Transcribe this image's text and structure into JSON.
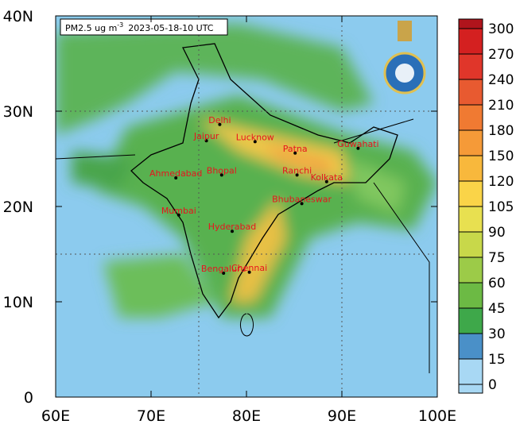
{
  "title": {
    "text": "PM2.5 ug m",
    "superscript": "-3",
    "time": "2023-05-18-10 UTC"
  },
  "map": {
    "lonlim": [
      60,
      100
    ],
    "latlim": [
      0,
      40
    ],
    "lonticks": [
      {
        "value": 60,
        "label": "60E"
      },
      {
        "value": 70,
        "label": "70E"
      },
      {
        "value": 80,
        "label": "80E"
      },
      {
        "value": 90,
        "label": "90E"
      },
      {
        "value": 100,
        "label": "100E"
      }
    ],
    "latticks": [
      {
        "value": 0,
        "label": "0"
      },
      {
        "value": 10,
        "label": "10N"
      },
      {
        "value": 20,
        "label": "20N"
      },
      {
        "value": 30,
        "label": "30N"
      },
      {
        "value": 40,
        "label": "40N"
      }
    ],
    "cities": [
      {
        "name": "Delhi",
        "lon": 77.2,
        "lat": 28.6
      },
      {
        "name": "Jaipur",
        "lon": 75.8,
        "lat": 26.9
      },
      {
        "name": "Lucknow",
        "lon": 80.9,
        "lat": 26.8
      },
      {
        "name": "Patna",
        "lon": 85.1,
        "lat": 25.6
      },
      {
        "name": "Guwahati",
        "lon": 91.7,
        "lat": 26.1
      },
      {
        "name": "Ahmedabad",
        "lon": 72.6,
        "lat": 23.0
      },
      {
        "name": "Bhopal",
        "lon": 77.4,
        "lat": 23.3
      },
      {
        "name": "Ranchi",
        "lon": 85.3,
        "lat": 23.3
      },
      {
        "name": "Kolkata",
        "lon": 88.4,
        "lat": 22.6
      },
      {
        "name": "Mumbai",
        "lon": 72.9,
        "lat": 19.1
      },
      {
        "name": "Bhubaneswar",
        "lon": 85.8,
        "lat": 20.3
      },
      {
        "name": "Hyderabad",
        "lon": 78.5,
        "lat": 17.4
      },
      {
        "name": "Chennai",
        "lon": 80.3,
        "lat": 13.1
      },
      {
        "name": "Bengaluru",
        "lon": 77.6,
        "lat": 13.0
      }
    ]
  },
  "colorbar": {
    "ticks": [
      300,
      270,
      240,
      210,
      180,
      150,
      120,
      105,
      90,
      75,
      60,
      45,
      30,
      15,
      0
    ],
    "colors": [
      "#b0141c",
      "#d42020",
      "#e0362a",
      "#e85a30",
      "#f07a32",
      "#f59a38",
      "#f8b83c",
      "#fad448",
      "#e8e050",
      "#c8d84a",
      "#9ccb48",
      "#6cba44",
      "#3ea84a",
      "#4a90c8",
      "#a8d8f4"
    ]
  }
}
